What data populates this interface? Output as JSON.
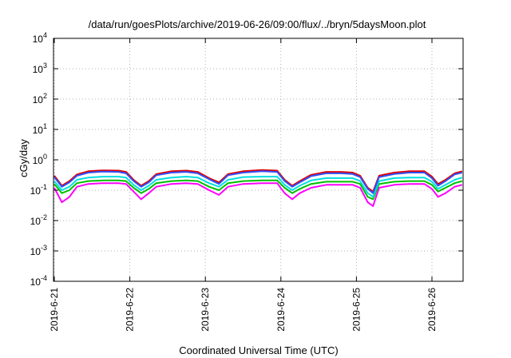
{
  "chart_data": {
    "type": "line",
    "title": "/data/run/goesPlots/archive/2019-06-26/09:00/flux/../bryn/5daysMoon.plot",
    "xlabel": "Coordinated Universal Time (UTC)",
    "ylabel": "cGy/day",
    "y_scale": "log",
    "ylim": [
      0.0001,
      10000
    ],
    "y_ticks": [
      {
        "value": 0.0001,
        "base": "10",
        "exp": "-4"
      },
      {
        "value": 0.001,
        "base": "10",
        "exp": "-3"
      },
      {
        "value": 0.01,
        "base": "10",
        "exp": "-2"
      },
      {
        "value": 0.1,
        "base": "10",
        "exp": "-1"
      },
      {
        "value": 1,
        "base": "10",
        "exp": "0"
      },
      {
        "value": 10,
        "base": "10",
        "exp": "1"
      },
      {
        "value": 100,
        "base": "10",
        "exp": "2"
      },
      {
        "value": 1000,
        "base": "10",
        "exp": "3"
      },
      {
        "value": 10000,
        "base": "10",
        "exp": "4"
      }
    ],
    "x_ticks": [
      "2019-6-21",
      "2019-6-22",
      "2019-6-23",
      "2019-6-24",
      "2019-6-25",
      "2019-6-26"
    ],
    "xlim_days": [
      0,
      5.4
    ],
    "grid": true,
    "series": [
      {
        "color": "#ff00ff",
        "values": [
          [
            0.0,
            0.12
          ],
          [
            0.1,
            0.04
          ],
          [
            0.2,
            0.06
          ],
          [
            0.3,
            0.13
          ],
          [
            0.45,
            0.16
          ],
          [
            0.65,
            0.17
          ],
          [
            0.85,
            0.17
          ],
          [
            0.95,
            0.16
          ],
          [
            1.05,
            0.09
          ],
          [
            1.15,
            0.05
          ],
          [
            1.25,
            0.08
          ],
          [
            1.35,
            0.13
          ],
          [
            1.55,
            0.16
          ],
          [
            1.75,
            0.17
          ],
          [
            1.9,
            0.16
          ],
          [
            2.05,
            0.1
          ],
          [
            2.18,
            0.07
          ],
          [
            2.3,
            0.13
          ],
          [
            2.5,
            0.16
          ],
          [
            2.75,
            0.17
          ],
          [
            2.95,
            0.17
          ],
          [
            3.05,
            0.08
          ],
          [
            3.15,
            0.05
          ],
          [
            3.25,
            0.08
          ],
          [
            3.4,
            0.12
          ],
          [
            3.6,
            0.15
          ],
          [
            3.8,
            0.15
          ],
          [
            3.95,
            0.15
          ],
          [
            4.05,
            0.12
          ],
          [
            4.15,
            0.04
          ],
          [
            4.22,
            0.03
          ],
          [
            4.3,
            0.12
          ],
          [
            4.5,
            0.15
          ],
          [
            4.7,
            0.16
          ],
          [
            4.9,
            0.16
          ],
          [
            5.0,
            0.11
          ],
          [
            5.08,
            0.06
          ],
          [
            5.18,
            0.08
          ],
          [
            5.3,
            0.13
          ],
          [
            5.4,
            0.15
          ]
        ]
      },
      {
        "color": "#00c000",
        "values": [
          [
            0.0,
            0.16
          ],
          [
            0.1,
            0.08
          ],
          [
            0.2,
            0.1
          ],
          [
            0.3,
            0.17
          ],
          [
            0.45,
            0.2
          ],
          [
            0.65,
            0.21
          ],
          [
            0.85,
            0.21
          ],
          [
            0.95,
            0.2
          ],
          [
            1.05,
            0.12
          ],
          [
            1.15,
            0.08
          ],
          [
            1.25,
            0.11
          ],
          [
            1.35,
            0.17
          ],
          [
            1.55,
            0.2
          ],
          [
            1.75,
            0.21
          ],
          [
            1.9,
            0.2
          ],
          [
            2.05,
            0.13
          ],
          [
            2.18,
            0.1
          ],
          [
            2.3,
            0.17
          ],
          [
            2.5,
            0.2
          ],
          [
            2.75,
            0.21
          ],
          [
            2.95,
            0.21
          ],
          [
            3.05,
            0.12
          ],
          [
            3.15,
            0.08
          ],
          [
            3.25,
            0.11
          ],
          [
            3.4,
            0.16
          ],
          [
            3.6,
            0.19
          ],
          [
            3.8,
            0.19
          ],
          [
            3.95,
            0.19
          ],
          [
            4.05,
            0.16
          ],
          [
            4.15,
            0.06
          ],
          [
            4.22,
            0.05
          ],
          [
            4.3,
            0.16
          ],
          [
            4.5,
            0.19
          ],
          [
            4.7,
            0.2
          ],
          [
            4.9,
            0.2
          ],
          [
            5.0,
            0.15
          ],
          [
            5.08,
            0.09
          ],
          [
            5.18,
            0.12
          ],
          [
            5.3,
            0.17
          ],
          [
            5.4,
            0.2
          ]
        ]
      },
      {
        "color": "#00e0e0",
        "values": [
          [
            0.0,
            0.2
          ],
          [
            0.1,
            0.1
          ],
          [
            0.2,
            0.13
          ],
          [
            0.3,
            0.22
          ],
          [
            0.45,
            0.26
          ],
          [
            0.65,
            0.28
          ],
          [
            0.85,
            0.28
          ],
          [
            0.95,
            0.26
          ],
          [
            1.05,
            0.15
          ],
          [
            1.15,
            0.1
          ],
          [
            1.25,
            0.14
          ],
          [
            1.35,
            0.22
          ],
          [
            1.55,
            0.26
          ],
          [
            1.75,
            0.28
          ],
          [
            1.9,
            0.26
          ],
          [
            2.05,
            0.17
          ],
          [
            2.18,
            0.13
          ],
          [
            2.3,
            0.22
          ],
          [
            2.5,
            0.27
          ],
          [
            2.75,
            0.28
          ],
          [
            2.95,
            0.28
          ],
          [
            3.05,
            0.15
          ],
          [
            3.15,
            0.1
          ],
          [
            3.25,
            0.14
          ],
          [
            3.4,
            0.21
          ],
          [
            3.6,
            0.25
          ],
          [
            3.8,
            0.25
          ],
          [
            3.95,
            0.25
          ],
          [
            4.05,
            0.2
          ],
          [
            4.15,
            0.08
          ],
          [
            4.22,
            0.06
          ],
          [
            4.3,
            0.2
          ],
          [
            4.5,
            0.25
          ],
          [
            4.7,
            0.26
          ],
          [
            4.9,
            0.26
          ],
          [
            5.0,
            0.19
          ],
          [
            5.08,
            0.11
          ],
          [
            5.18,
            0.15
          ],
          [
            5.3,
            0.22
          ],
          [
            5.4,
            0.26
          ]
        ]
      },
      {
        "color": "#e00000",
        "values": [
          [
            0.0,
            0.3
          ],
          [
            0.1,
            0.14
          ],
          [
            0.2,
            0.2
          ],
          [
            0.3,
            0.33
          ],
          [
            0.45,
            0.42
          ],
          [
            0.65,
            0.45
          ],
          [
            0.85,
            0.44
          ],
          [
            0.95,
            0.4
          ],
          [
            1.05,
            0.22
          ],
          [
            1.15,
            0.14
          ],
          [
            1.25,
            0.2
          ],
          [
            1.35,
            0.34
          ],
          [
            1.55,
            0.42
          ],
          [
            1.75,
            0.44
          ],
          [
            1.9,
            0.4
          ],
          [
            2.05,
            0.25
          ],
          [
            2.18,
            0.18
          ],
          [
            2.3,
            0.34
          ],
          [
            2.5,
            0.42
          ],
          [
            2.75,
            0.46
          ],
          [
            2.95,
            0.44
          ],
          [
            3.05,
            0.22
          ],
          [
            3.15,
            0.14
          ],
          [
            3.25,
            0.2
          ],
          [
            3.4,
            0.32
          ],
          [
            3.6,
            0.4
          ],
          [
            3.8,
            0.4
          ],
          [
            3.95,
            0.38
          ],
          [
            4.05,
            0.3
          ],
          [
            4.15,
            0.12
          ],
          [
            4.22,
            0.09
          ],
          [
            4.3,
            0.3
          ],
          [
            4.5,
            0.38
          ],
          [
            4.7,
            0.42
          ],
          [
            4.9,
            0.42
          ],
          [
            5.0,
            0.28
          ],
          [
            5.08,
            0.16
          ],
          [
            5.18,
            0.22
          ],
          [
            5.3,
            0.36
          ],
          [
            5.4,
            0.42
          ]
        ]
      },
      {
        "color": "#3050ff",
        "values": [
          [
            0.0,
            0.27
          ],
          [
            0.1,
            0.13
          ],
          [
            0.2,
            0.18
          ],
          [
            0.3,
            0.3
          ],
          [
            0.45,
            0.38
          ],
          [
            0.65,
            0.41
          ],
          [
            0.85,
            0.4
          ],
          [
            0.95,
            0.36
          ],
          [
            1.05,
            0.2
          ],
          [
            1.15,
            0.13
          ],
          [
            1.25,
            0.18
          ],
          [
            1.35,
            0.31
          ],
          [
            1.55,
            0.38
          ],
          [
            1.75,
            0.4
          ],
          [
            1.9,
            0.36
          ],
          [
            2.05,
            0.23
          ],
          [
            2.18,
            0.16
          ],
          [
            2.3,
            0.31
          ],
          [
            2.5,
            0.38
          ],
          [
            2.75,
            0.42
          ],
          [
            2.95,
            0.4
          ],
          [
            3.05,
            0.2
          ],
          [
            3.15,
            0.13
          ],
          [
            3.25,
            0.18
          ],
          [
            3.4,
            0.29
          ],
          [
            3.6,
            0.36
          ],
          [
            3.8,
            0.36
          ],
          [
            3.95,
            0.34
          ],
          [
            4.05,
            0.27
          ],
          [
            4.15,
            0.11
          ],
          [
            4.22,
            0.08
          ],
          [
            4.3,
            0.27
          ],
          [
            4.5,
            0.34
          ],
          [
            4.7,
            0.38
          ],
          [
            4.9,
            0.38
          ],
          [
            5.0,
            0.25
          ],
          [
            5.08,
            0.14
          ],
          [
            5.18,
            0.2
          ],
          [
            5.3,
            0.33
          ],
          [
            5.4,
            0.38
          ]
        ]
      }
    ]
  }
}
